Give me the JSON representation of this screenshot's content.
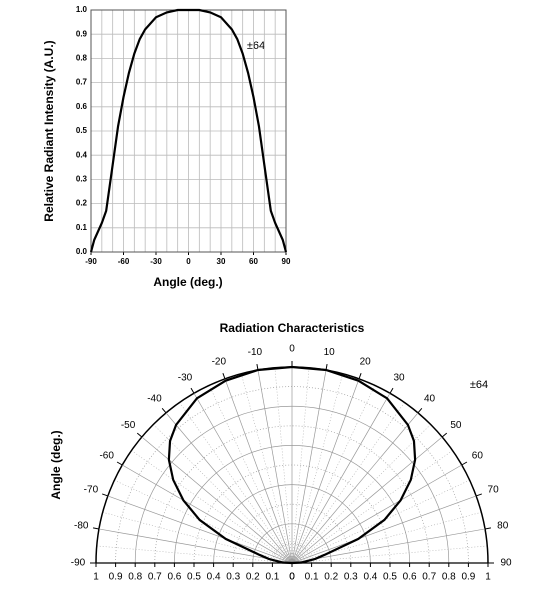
{
  "chart_data": [
    {
      "type": "line",
      "ylabel": "Relative Radiant Intensity (A.U.)",
      "xlabel": "Angle (deg.)",
      "annotation": "±64",
      "x": [
        -90,
        -87,
        -80,
        -76,
        -70,
        -65,
        -60,
        -55,
        -50,
        -45,
        -40,
        -30,
        -20,
        -10,
        0,
        10,
        20,
        30,
        40,
        45,
        50,
        55,
        60,
        65,
        70,
        76,
        80,
        87,
        90
      ],
      "values": [
        0,
        0.05,
        0.12,
        0.17,
        0.36,
        0.52,
        0.64,
        0.74,
        0.82,
        0.88,
        0.92,
        0.97,
        0.99,
        1.0,
        1.0,
        1.0,
        0.99,
        0.97,
        0.92,
        0.88,
        0.82,
        0.74,
        0.64,
        0.52,
        0.36,
        0.17,
        0.12,
        0.05,
        0
      ],
      "color": "#000000",
      "xlim": [
        -90,
        90
      ],
      "ylim": [
        0,
        1
      ],
      "xticks": [
        -90,
        -60,
        -30,
        0,
        30,
        60,
        90
      ],
      "yticks": [
        {
          "value": 0,
          "label": "0.0"
        },
        0.1,
        0.2,
        0.3,
        0.4,
        0.5,
        0.6,
        0.7,
        0.8,
        0.9,
        {
          "value": 1,
          "label": "1.0"
        }
      ],
      "grid": true
    },
    {
      "type": "polar",
      "title": "Radiation Characteristics",
      "ylabel": "Angle (deg.)",
      "annotation": "±64",
      "theta": [
        -90,
        -87,
        -80,
        -76,
        -70,
        -65,
        -60,
        -55,
        -50,
        -45,
        -40,
        -30,
        -20,
        -10,
        0,
        10,
        20,
        30,
        40,
        45,
        50,
        55,
        60,
        65,
        70,
        76,
        80,
        87,
        90
      ],
      "values": [
        0,
        0.05,
        0.12,
        0.17,
        0.36,
        0.52,
        0.64,
        0.74,
        0.82,
        0.88,
        0.92,
        0.97,
        0.99,
        1.0,
        1.0,
        1.0,
        0.99,
        0.97,
        0.92,
        0.88,
        0.82,
        0.74,
        0.64,
        0.52,
        0.36,
        0.17,
        0.12,
        0.05,
        0
      ],
      "color": "#000000",
      "rlim": [
        0,
        1
      ],
      "thetaticks": [
        -90,
        -80,
        -70,
        -60,
        -50,
        -40,
        -30,
        -20,
        -10,
        0,
        10,
        20,
        30,
        40,
        50,
        60,
        70,
        80,
        90
      ],
      "rticks": [
        0,
        0.1,
        0.2,
        0.3,
        0.4,
        0.5,
        0.6,
        0.7,
        0.8,
        0.9,
        1
      ]
    }
  ]
}
